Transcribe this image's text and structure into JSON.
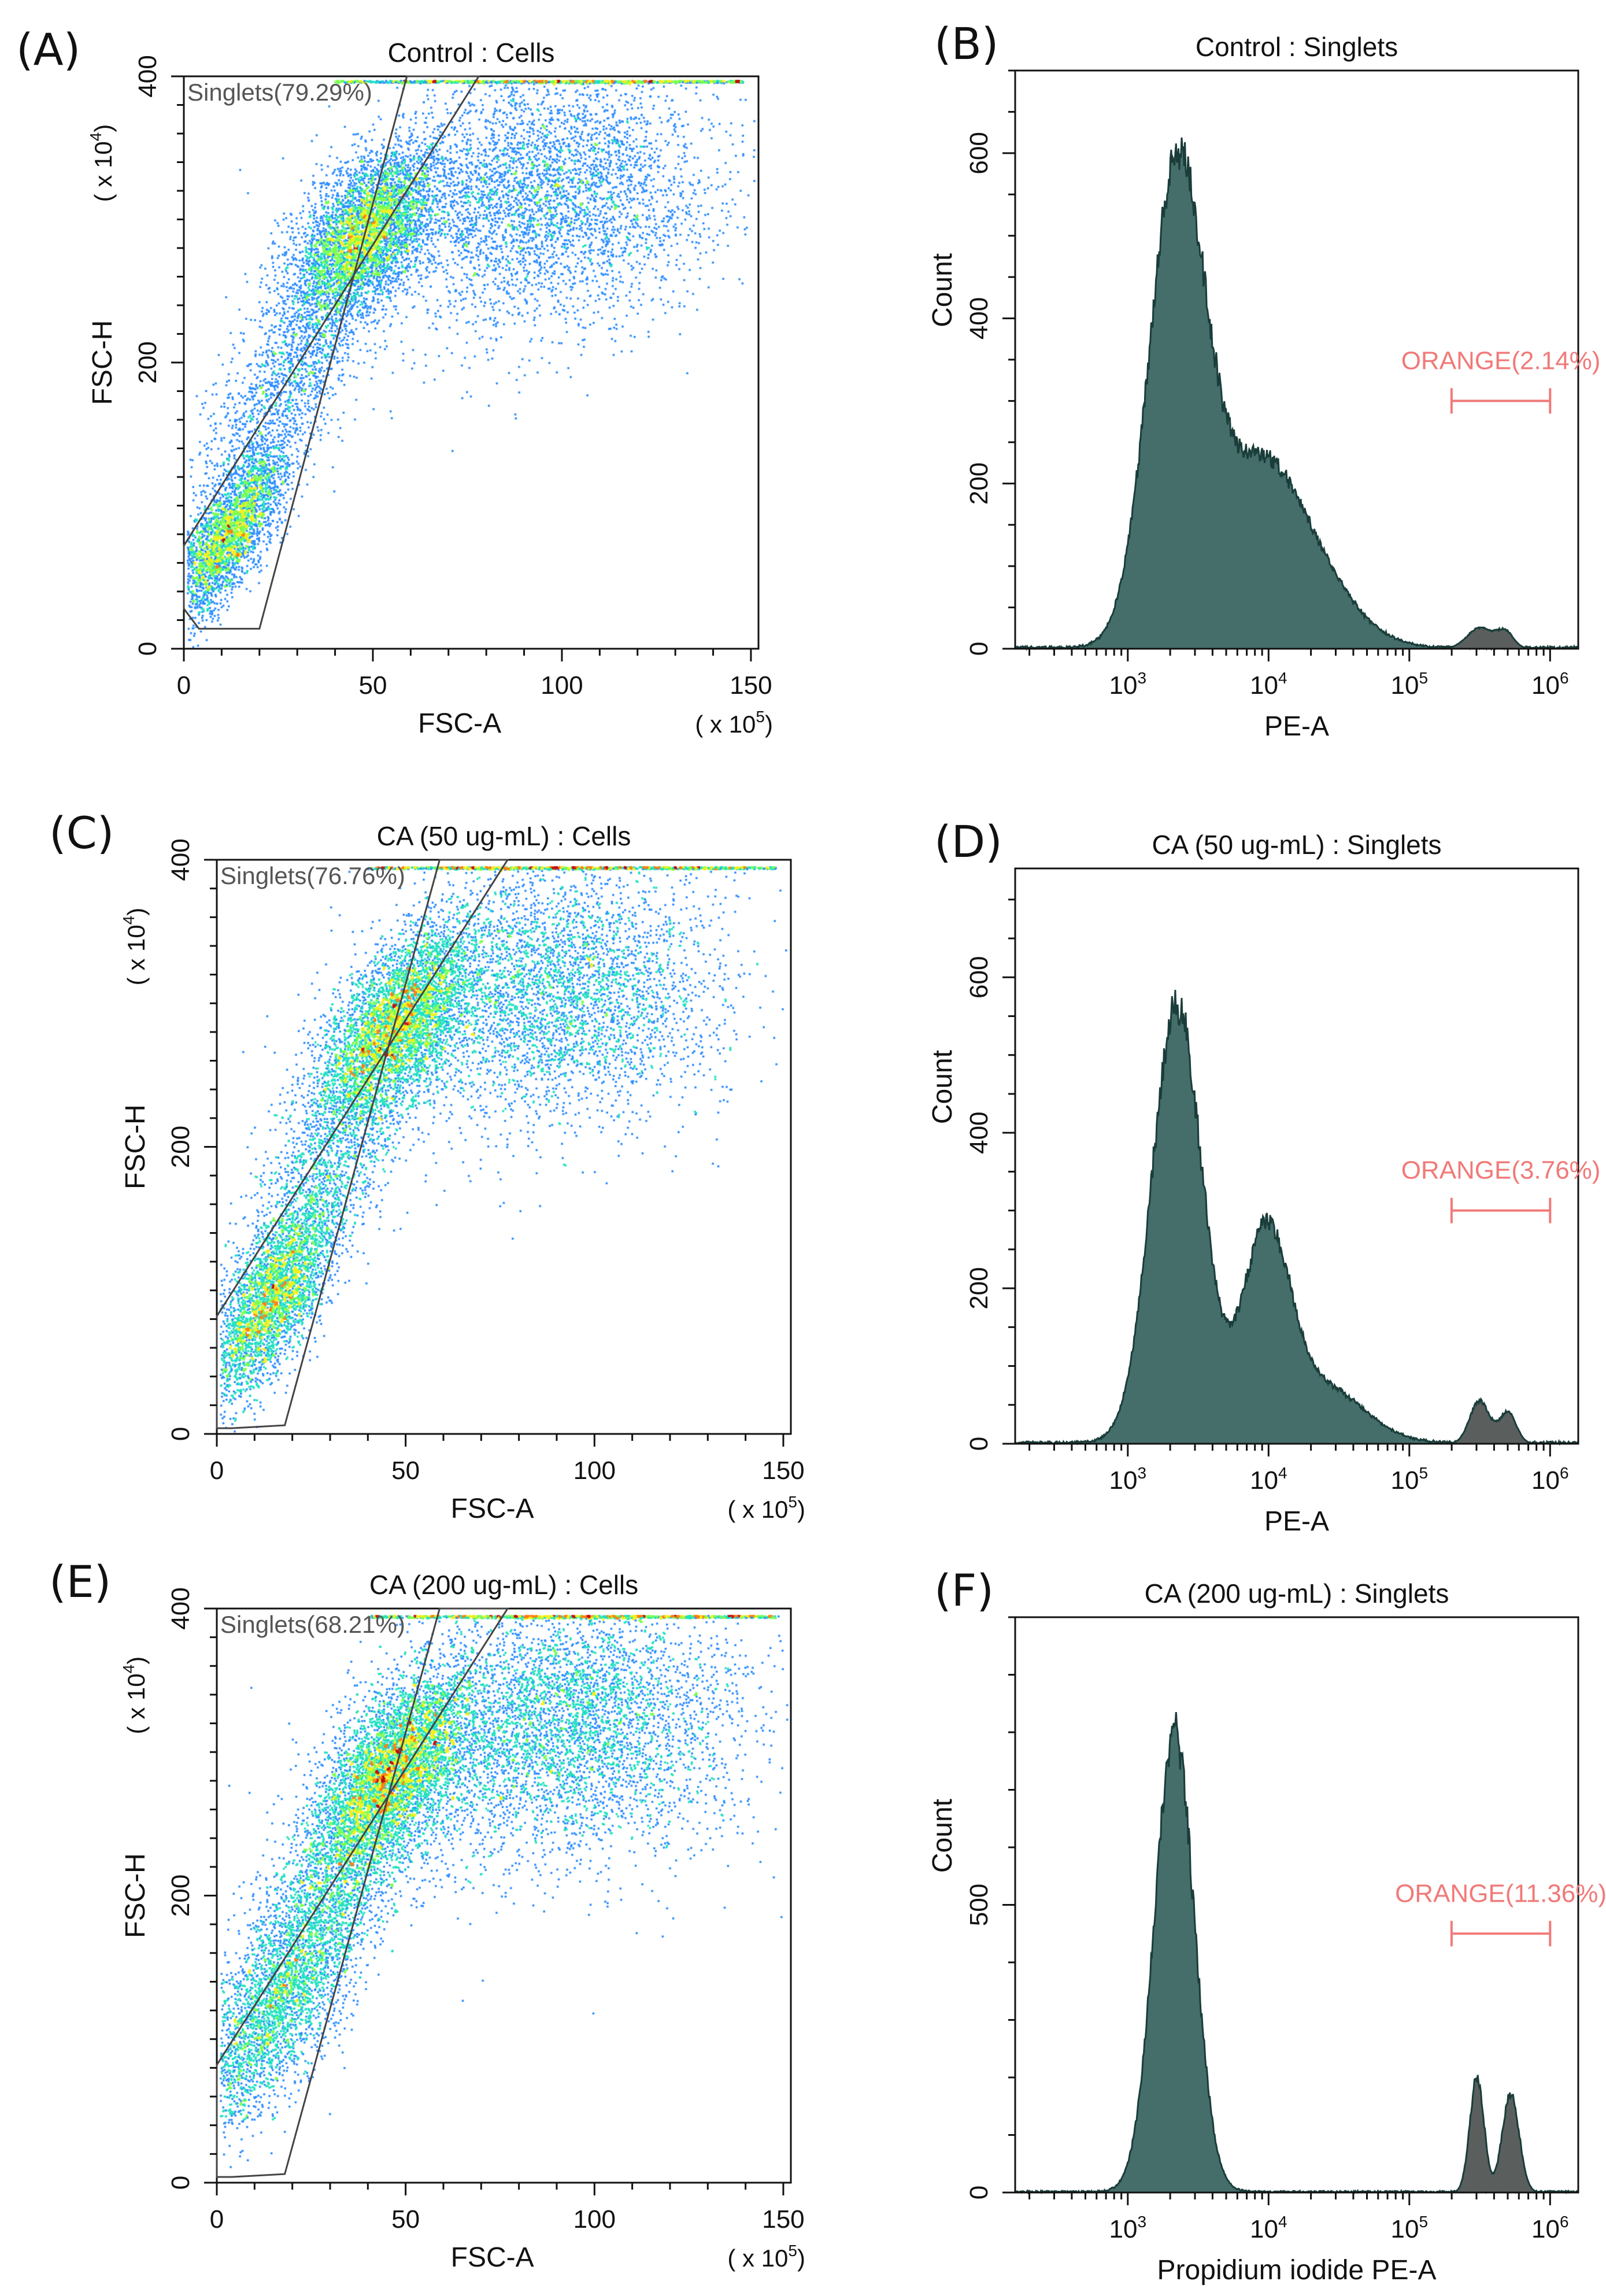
{
  "chart_data": [
    {
      "type": "scatter",
      "panel_label": "(A)",
      "title": "Control : Cells",
      "xlabel": "FSC-A",
      "ylabel": "FSC-H",
      "x_multiplier_base": "( x 10",
      "x_multiplier_exp": "5",
      "x_multiplier_close": ")",
      "y_multiplier_base": "( x 10",
      "y_multiplier_exp": "4",
      "y_multiplier_close": ")",
      "xlim": [
        0,
        152
      ],
      "ylim": [
        0,
        400
      ],
      "xticks": [
        0,
        50,
        100,
        150
      ],
      "yticks": [
        0,
        200,
        400
      ],
      "gate_label": "Singlets(79.29%)",
      "gate_polygon": [
        [
          0,
          72
        ],
        [
          78,
          400
        ],
        [
          59,
          400
        ],
        [
          20,
          14
        ],
        [
          4,
          14
        ],
        [
          0,
          28
        ]
      ],
      "clusters": [
        {
          "cx": 12,
          "cy": 80,
          "sx": 5,
          "sy": 30,
          "n": 3000,
          "rot": 1
        },
        {
          "cx": 48,
          "cy": 290,
          "sx": 8,
          "sy": 30,
          "n": 4500,
          "rot": 1
        },
        {
          "cx": 28,
          "cy": 190,
          "sx": 8,
          "sy": 50,
          "n": 1500,
          "rot": 1
        },
        {
          "cx": 95,
          "cy": 320,
          "sx": 22,
          "sy": 45,
          "n": 4000,
          "rot": 0
        }
      ],
      "saturation_line": 397,
      "density_colors": [
        "#0a10f0",
        "#2a8cff",
        "#20e0c0",
        "#7cff50",
        "#f0f020",
        "#ff8010",
        "#c01010"
      ]
    },
    {
      "type": "area",
      "panel_label": "(B)",
      "title": "Control : Singlets",
      "xlabel": "PE-A",
      "ylabel": "Count",
      "x_scale": "log",
      "xlim_log10": [
        2.2,
        6.2
      ],
      "ylim": [
        0,
        700
      ],
      "xtick_base": "10",
      "xtick_exps": [
        "3",
        "4",
        "5",
        "6"
      ],
      "yticks": [
        0,
        200,
        400,
        600
      ],
      "peaks": [
        {
          "mu": 3.35,
          "sigma": 0.2,
          "amp": 570
        },
        {
          "mu": 3.9,
          "sigma": 0.28,
          "amp": 190
        },
        {
          "mu": 4.3,
          "sigma": 0.3,
          "amp": 80
        }
      ],
      "gated_peaks": [
        {
          "mu": 5.5,
          "sigma": 0.09,
          "amp": 25
        },
        {
          "mu": 5.68,
          "sigma": 0.06,
          "amp": 20
        }
      ],
      "marker_label": "ORANGE(2.14%)",
      "marker_range_log10": [
        5.3,
        6.0
      ],
      "marker_y": 300,
      "fill_color": "#456e6a",
      "edge_color": "#1a3d3a",
      "gated_fill": "#5a5f5e",
      "marker_color": "#f07a78"
    },
    {
      "type": "scatter",
      "panel_label": "(C)",
      "title": "CA (50 ug-mL) : Cells",
      "xlabel": "FSC-A",
      "ylabel": "FSC-H",
      "x_multiplier_base": "( x 10",
      "x_multiplier_exp": "5",
      "x_multiplier_close": ")",
      "y_multiplier_base": "( x 10",
      "y_multiplier_exp": "4",
      "y_multiplier_close": ")",
      "xlim": [
        0,
        152
      ],
      "ylim": [
        0,
        400
      ],
      "xticks": [
        0,
        50,
        100,
        150
      ],
      "yticks": [
        0,
        200,
        400
      ],
      "gate_label": "Singlets(76.76%)",
      "gate_polygon": [
        [
          0,
          82
        ],
        [
          77,
          400
        ],
        [
          59,
          400
        ],
        [
          18,
          6
        ],
        [
          4,
          4
        ],
        [
          0,
          4
        ]
      ],
      "clusters": [
        {
          "cx": 14,
          "cy": 90,
          "sx": 6,
          "sy": 35,
          "n": 3200,
          "rot": 1
        },
        {
          "cx": 47,
          "cy": 285,
          "sx": 8,
          "sy": 35,
          "n": 4500,
          "rot": 1
        },
        {
          "cx": 28,
          "cy": 180,
          "sx": 8,
          "sy": 50,
          "n": 1600,
          "rot": 1
        },
        {
          "cx": 88,
          "cy": 310,
          "sx": 22,
          "sy": 45,
          "n": 4000,
          "rot": 0
        }
      ],
      "saturation_line": 395,
      "density_colors": [
        "#0a10f0",
        "#2a8cff",
        "#20e0c0",
        "#7cff50",
        "#f0f020",
        "#ff8010",
        "#c01010"
      ]
    },
    {
      "type": "area",
      "panel_label": "(D)",
      "title": "CA (50 ug-mL) : Singlets",
      "xlabel": "PE-A",
      "ylabel": "Count",
      "x_scale": "log",
      "xlim_log10": [
        2.2,
        6.2
      ],
      "ylim": [
        0,
        740
      ],
      "xtick_base": "10",
      "xtick_exps": [
        "3",
        "4",
        "5",
        "6"
      ],
      "yticks": [
        0,
        200,
        400,
        600
      ],
      "peaks": [
        {
          "mu": 3.35,
          "sigma": 0.18,
          "amp": 560
        },
        {
          "mu": 3.98,
          "sigma": 0.17,
          "amp": 260
        },
        {
          "mu": 4.4,
          "sigma": 0.28,
          "amp": 70
        }
      ],
      "gated_peaks": [
        {
          "mu": 5.5,
          "sigma": 0.07,
          "amp": 55
        },
        {
          "mu": 5.7,
          "sigma": 0.06,
          "amp": 40
        }
      ],
      "marker_label": "ORANGE(3.76%)",
      "marker_range_log10": [
        5.3,
        6.0
      ],
      "marker_y": 300,
      "fill_color": "#456e6a",
      "edge_color": "#1a3d3a",
      "gated_fill": "#5a5f5e",
      "marker_color": "#f07a78"
    },
    {
      "type": "scatter",
      "panel_label": "(E)",
      "title": "CA (200 ug-mL) : Cells",
      "xlabel": "FSC-A",
      "ylabel": "FSC-H",
      "x_multiplier_base": "( x 10",
      "x_multiplier_exp": "5",
      "x_multiplier_close": ")",
      "y_multiplier_base": "( x 10",
      "y_multiplier_exp": "4",
      "y_multiplier_close": ")",
      "xlim": [
        0,
        152
      ],
      "ylim": [
        0,
        400
      ],
      "xticks": [
        0,
        50,
        100,
        150
      ],
      "yticks": [
        0,
        200,
        400
      ],
      "gate_label": "Singlets(68.21%)",
      "gate_polygon": [
        [
          0,
          82
        ],
        [
          77,
          400
        ],
        [
          59,
          400
        ],
        [
          18,
          6
        ],
        [
          4,
          4
        ],
        [
          0,
          4
        ]
      ],
      "clusters": [
        {
          "cx": 15,
          "cy": 120,
          "sx": 8,
          "sy": 45,
          "n": 2800,
          "rot": 1
        },
        {
          "cx": 46,
          "cy": 285,
          "sx": 8,
          "sy": 35,
          "n": 4800,
          "rot": 1
        },
        {
          "cx": 30,
          "cy": 200,
          "sx": 9,
          "sy": 50,
          "n": 1800,
          "rot": 1
        },
        {
          "cx": 90,
          "cy": 320,
          "sx": 24,
          "sy": 45,
          "n": 5000,
          "rot": 0
        }
      ],
      "saturation_line": 395,
      "density_colors": [
        "#0a10f0",
        "#2a8cff",
        "#20e0c0",
        "#7cff50",
        "#f0f020",
        "#ff8010",
        "#c01010"
      ]
    },
    {
      "type": "area",
      "panel_label": "(F)",
      "title": "CA (200 ug-mL) : Singlets",
      "xlabel": "Propidium iodide PE-A",
      "ylabel": "Count",
      "x_scale": "log",
      "xlim_log10": [
        2.2,
        6.2
      ],
      "ylim": [
        0,
        1000
      ],
      "xtick_base": "10",
      "xtick_exps": [
        "3",
        "4",
        "5",
        "6"
      ],
      "yticks": [
        0,
        500
      ],
      "peaks": [
        {
          "mu": 3.33,
          "sigma": 0.14,
          "amp": 800
        }
      ],
      "gated_peaks": [
        {
          "mu": 5.48,
          "sigma": 0.05,
          "amp": 200
        },
        {
          "mu": 5.72,
          "sigma": 0.06,
          "amp": 170
        }
      ],
      "marker_label": "ORANGE(11.36%)",
      "marker_range_log10": [
        5.3,
        6.0
      ],
      "marker_y": 450,
      "fill_color": "#456e6a",
      "edge_color": "#1a3d3a",
      "gated_fill": "#5a5f5e",
      "marker_color": "#f07a78"
    }
  ]
}
